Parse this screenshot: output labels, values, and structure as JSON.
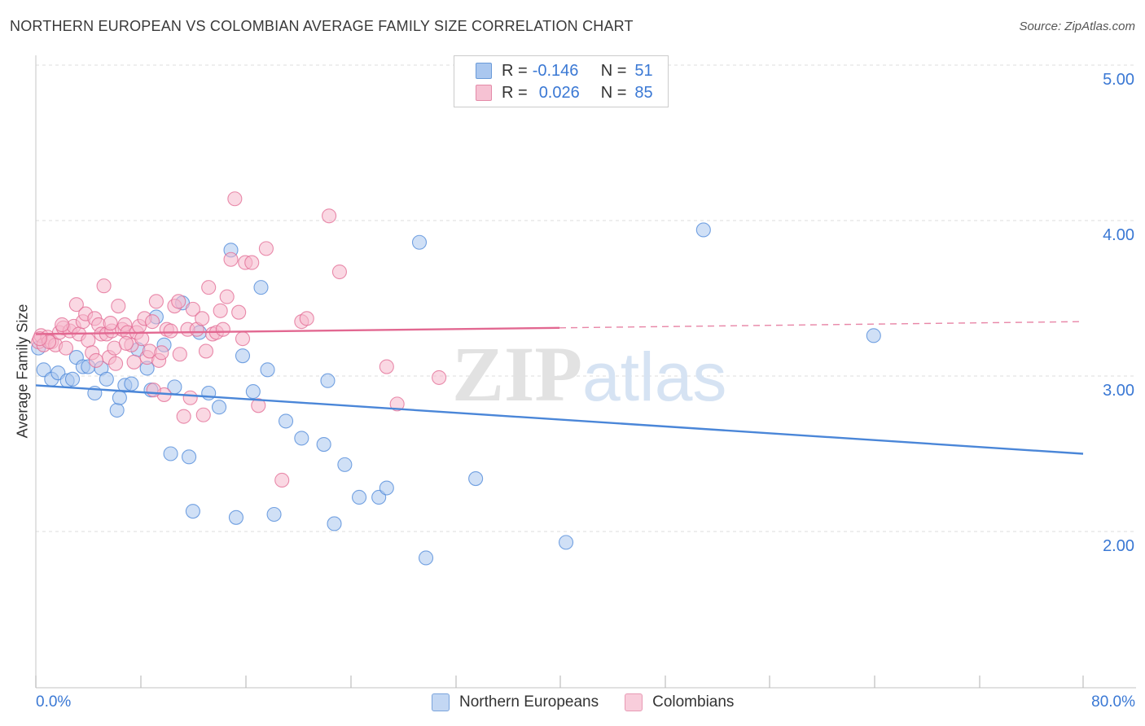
{
  "title": "NORTHERN EUROPEAN VS COLOMBIAN AVERAGE FAMILY SIZE CORRELATION CHART",
  "source": "Source: ZipAtlas.com",
  "watermark": "ZIPatlas",
  "legend": {
    "r_label": "R =",
    "n_label": "N =",
    "rows": [
      {
        "r": "-0.146",
        "n": "51",
        "color": "#aac7ef"
      },
      {
        "r": "0.026",
        "n": "85",
        "color": "#f6b8cc"
      }
    ]
  },
  "chart_data": {
    "type": "scatter",
    "xlabel": "",
    "ylabel": "Average Family Size",
    "xlim": [
      0,
      80
    ],
    "ylim": [
      1.0,
      5.2
    ],
    "x_tick_labels": {
      "min": "0.0%",
      "max": "80.0%"
    },
    "y_ticks": [
      {
        "value": 2.0,
        "label": "2.00"
      },
      {
        "value": 3.0,
        "label": "3.00"
      },
      {
        "value": 4.0,
        "label": "4.00"
      },
      {
        "value": 5.0,
        "label": "5.00"
      }
    ],
    "series": [
      {
        "name": "Northern Europeans",
        "color": "#4a86d8",
        "fill": "#aac7ef",
        "trend": {
          "x0": 0,
          "y0": 2.94,
          "x1": 80,
          "y1": 2.5,
          "dashed_from": null
        },
        "points": [
          [
            0.2,
            3.18
          ],
          [
            0.6,
            3.04
          ],
          [
            1.2,
            2.98
          ],
          [
            1.7,
            3.02
          ],
          [
            2.4,
            2.97
          ],
          [
            2.8,
            2.98
          ],
          [
            3.1,
            3.12
          ],
          [
            3.6,
            3.06
          ],
          [
            4.0,
            3.06
          ],
          [
            4.5,
            2.89
          ],
          [
            5.0,
            3.05
          ],
          [
            5.4,
            2.98
          ],
          [
            6.2,
            2.78
          ],
          [
            6.4,
            2.86
          ],
          [
            6.8,
            2.94
          ],
          [
            7.3,
            2.95
          ],
          [
            7.8,
            3.17
          ],
          [
            8.5,
            3.05
          ],
          [
            8.8,
            2.91
          ],
          [
            9.2,
            3.38
          ],
          [
            9.8,
            3.2
          ],
          [
            10.3,
            2.5
          ],
          [
            10.6,
            2.93
          ],
          [
            11.2,
            3.47
          ],
          [
            11.7,
            2.48
          ],
          [
            12.0,
            2.13
          ],
          [
            12.5,
            3.28
          ],
          [
            13.2,
            2.89
          ],
          [
            14.0,
            2.8
          ],
          [
            14.9,
            3.81
          ],
          [
            15.3,
            2.09
          ],
          [
            15.8,
            3.13
          ],
          [
            16.6,
            2.9
          ],
          [
            17.2,
            3.57
          ],
          [
            17.7,
            3.04
          ],
          [
            18.2,
            2.11
          ],
          [
            19.1,
            2.71
          ],
          [
            20.3,
            2.6
          ],
          [
            22.0,
            2.56
          ],
          [
            22.3,
            2.97
          ],
          [
            22.8,
            2.05
          ],
          [
            23.6,
            2.43
          ],
          [
            24.7,
            2.22
          ],
          [
            26.2,
            2.22
          ],
          [
            26.8,
            2.28
          ],
          [
            29.3,
            3.86
          ],
          [
            29.8,
            1.83
          ],
          [
            33.6,
            2.34
          ],
          [
            40.5,
            1.93
          ],
          [
            51.0,
            3.94
          ],
          [
            64.0,
            3.26
          ]
        ]
      },
      {
        "name": "Colombians",
        "color": "#e26891",
        "fill": "#f6b8cc",
        "trend": {
          "x0": 0,
          "y0": 3.27,
          "x1": 80,
          "y1": 3.35,
          "dashed_from": 40
        },
        "points": [
          [
            0.2,
            3.22
          ],
          [
            0.4,
            3.26
          ],
          [
            0.6,
            3.2
          ],
          [
            0.9,
            3.25
          ],
          [
            1.2,
            3.22
          ],
          [
            1.5,
            3.2
          ],
          [
            1.8,
            3.28
          ],
          [
            2.1,
            3.31
          ],
          [
            2.3,
            3.18
          ],
          [
            2.6,
            3.29
          ],
          [
            2.9,
            3.32
          ],
          [
            3.1,
            3.46
          ],
          [
            3.3,
            3.27
          ],
          [
            3.6,
            3.35
          ],
          [
            3.8,
            3.4
          ],
          [
            4.0,
            3.23
          ],
          [
            4.3,
            3.15
          ],
          [
            4.5,
            3.37
          ],
          [
            4.8,
            3.33
          ],
          [
            5.0,
            3.27
          ],
          [
            5.2,
            3.58
          ],
          [
            5.4,
            3.27
          ],
          [
            5.6,
            3.12
          ],
          [
            5.8,
            3.29
          ],
          [
            6.0,
            3.18
          ],
          [
            6.1,
            3.08
          ],
          [
            6.3,
            3.45
          ],
          [
            6.6,
            3.3
          ],
          [
            6.8,
            3.33
          ],
          [
            7.0,
            3.28
          ],
          [
            7.3,
            3.2
          ],
          [
            7.5,
            3.09
          ],
          [
            7.7,
            3.28
          ],
          [
            7.9,
            3.32
          ],
          [
            8.1,
            3.24
          ],
          [
            8.3,
            3.37
          ],
          [
            8.5,
            3.12
          ],
          [
            8.7,
            3.16
          ],
          [
            8.9,
            3.35
          ],
          [
            9.2,
            3.48
          ],
          [
            9.4,
            3.1
          ],
          [
            9.6,
            3.15
          ],
          [
            9.8,
            2.88
          ],
          [
            10.0,
            3.3
          ],
          [
            10.3,
            3.29
          ],
          [
            10.6,
            3.45
          ],
          [
            10.9,
            3.48
          ],
          [
            11.0,
            3.14
          ],
          [
            11.3,
            2.74
          ],
          [
            11.6,
            3.3
          ],
          [
            11.8,
            2.86
          ],
          [
            12.0,
            3.43
          ],
          [
            12.3,
            3.3
          ],
          [
            12.7,
            3.37
          ],
          [
            13.0,
            3.16
          ],
          [
            13.2,
            3.57
          ],
          [
            13.5,
            3.27
          ],
          [
            13.8,
            3.28
          ],
          [
            14.1,
            3.42
          ],
          [
            14.3,
            3.3
          ],
          [
            14.6,
            3.51
          ],
          [
            14.9,
            3.75
          ],
          [
            15.2,
            4.14
          ],
          [
            15.5,
            3.41
          ],
          [
            15.8,
            3.24
          ],
          [
            16.0,
            3.73
          ],
          [
            16.5,
            3.73
          ],
          [
            17.0,
            2.81
          ],
          [
            17.6,
            3.82
          ],
          [
            18.8,
            2.33
          ],
          [
            20.3,
            3.35
          ],
          [
            20.7,
            3.37
          ],
          [
            22.4,
            4.03
          ],
          [
            23.2,
            3.67
          ],
          [
            26.8,
            3.06
          ],
          [
            27.6,
            2.82
          ],
          [
            30.8,
            2.99
          ],
          [
            12.8,
            2.75
          ],
          [
            9.0,
            2.91
          ],
          [
            6.9,
            3.21
          ],
          [
            5.7,
            3.34
          ],
          [
            2.0,
            3.33
          ],
          [
            1.0,
            3.22
          ],
          [
            0.3,
            3.24
          ],
          [
            4.6,
            3.1
          ]
        ]
      }
    ]
  }
}
